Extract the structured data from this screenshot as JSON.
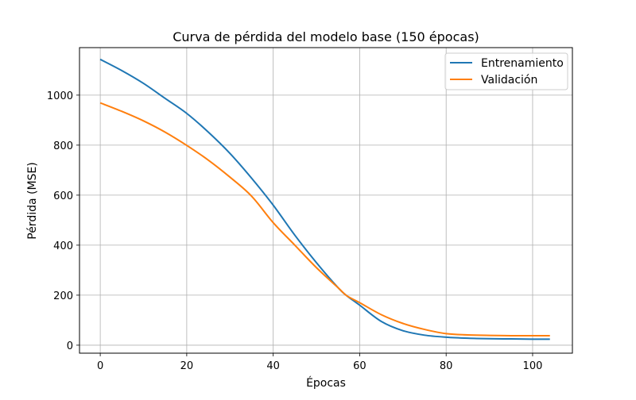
{
  "chart_data": {
    "type": "line",
    "title": "Curva de pérdida del modelo base (150 épocas)",
    "xlabel": "Épocas",
    "ylabel": "Pérdida (MSE)",
    "xlim": [
      -4.8,
      109.2
    ],
    "ylim": [
      -32,
      1190
    ],
    "xticks": [
      0,
      20,
      40,
      60,
      80,
      100
    ],
    "yticks": [
      0,
      200,
      400,
      600,
      800,
      1000
    ],
    "grid": true,
    "legend_position": "upper right",
    "x": [
      0,
      5,
      10,
      15,
      20,
      25,
      30,
      35,
      40,
      45,
      50,
      55,
      57,
      60,
      65,
      70,
      75,
      80,
      85,
      90,
      95,
      100,
      104
    ],
    "series": [
      {
        "name": "Entrenamiento",
        "color": "#1f77b4",
        "values": [
          1143,
          1098,
          1047,
          987,
          927,
          852,
          767,
          668,
          560,
          440,
          330,
          230,
          198,
          160,
          95,
          58,
          40,
          32,
          28,
          26,
          25,
          24,
          24
        ]
      },
      {
        "name": "Validación",
        "color": "#ff7f0e",
        "values": [
          969,
          935,
          897,
          852,
          799,
          740,
          672,
          596,
          490,
          400,
          310,
          230,
          198,
          170,
          122,
          87,
          63,
          46,
          41,
          39,
          38,
          38,
          38
        ]
      }
    ]
  }
}
